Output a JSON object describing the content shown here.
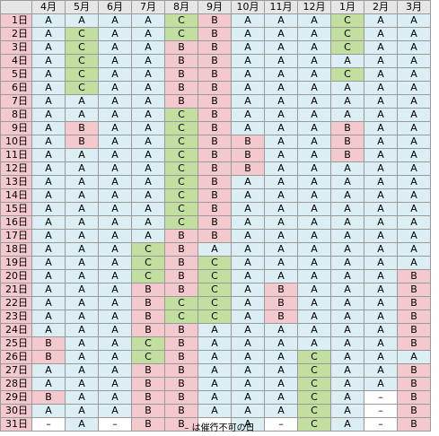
{
  "months": [
    "4月",
    "5月",
    "6月",
    "7月",
    "8月",
    "9月",
    "10月",
    "11月",
    "12月",
    "1月",
    "2月",
    "3月"
  ],
  "days": [
    "1日",
    "2日",
    "3日",
    "4日",
    "5日",
    "6日",
    "7日",
    "8日",
    "9日",
    "10日",
    "11日",
    "12日",
    "13日",
    "14日",
    "15日",
    "16日",
    "17日",
    "18日",
    "19日",
    "20日",
    "21日",
    "22日",
    "23日",
    "24日",
    "25日",
    "26日",
    "27日",
    "28日",
    "29日",
    "30日",
    "31日"
  ],
  "grid": [
    [
      "A",
      "A",
      "A",
      "A",
      "C",
      "B",
      "A",
      "A",
      "A",
      "C",
      "A",
      "A"
    ],
    [
      "A",
      "C",
      "A",
      "A",
      "C",
      "B",
      "A",
      "A",
      "A",
      "C",
      "A",
      "A"
    ],
    [
      "A",
      "C",
      "A",
      "A",
      "B",
      "B",
      "A",
      "A",
      "A",
      "C",
      "A",
      "A"
    ],
    [
      "A",
      "C",
      "A",
      "A",
      "B",
      "B",
      "A",
      "A",
      "A",
      "A",
      "A",
      "A"
    ],
    [
      "A",
      "C",
      "A",
      "A",
      "B",
      "B",
      "A",
      "A",
      "A",
      "C",
      "A",
      "A"
    ],
    [
      "A",
      "C",
      "A",
      "A",
      "B",
      "B",
      "A",
      "A",
      "A",
      "A",
      "A",
      "A"
    ],
    [
      "A",
      "A",
      "A",
      "A",
      "B",
      "B",
      "A",
      "A",
      "A",
      "A",
      "A",
      "A"
    ],
    [
      "A",
      "A",
      "A",
      "A",
      "C",
      "B",
      "A",
      "A",
      "A",
      "A",
      "A",
      "A"
    ],
    [
      "A",
      "B",
      "A",
      "A",
      "C",
      "B",
      "A",
      "A",
      "A",
      "B",
      "A",
      "A"
    ],
    [
      "A",
      "B",
      "A",
      "A",
      "C",
      "B",
      "B",
      "A",
      "A",
      "B",
      "A",
      "A"
    ],
    [
      "A",
      "A",
      "A",
      "A",
      "C",
      "B",
      "B",
      "A",
      "A",
      "B",
      "A",
      "A"
    ],
    [
      "A",
      "A",
      "A",
      "A",
      "C",
      "B",
      "B",
      "A",
      "A",
      "A",
      "A",
      "A"
    ],
    [
      "A",
      "A",
      "A",
      "A",
      "C",
      "B",
      "A",
      "A",
      "A",
      "A",
      "A",
      "A"
    ],
    [
      "A",
      "A",
      "A",
      "A",
      "C",
      "B",
      "A",
      "A",
      "A",
      "A",
      "A",
      "A"
    ],
    [
      "A",
      "A",
      "A",
      "A",
      "C",
      "B",
      "A",
      "A",
      "A",
      "A",
      "A",
      "A"
    ],
    [
      "A",
      "A",
      "A",
      "A",
      "C",
      "B",
      "A",
      "A",
      "A",
      "A",
      "A",
      "A"
    ],
    [
      "A",
      "A",
      "A",
      "A",
      "B",
      "B",
      "A",
      "A",
      "A",
      "A",
      "A",
      "A"
    ],
    [
      "A",
      "A",
      "A",
      "C",
      "B",
      "A",
      "A",
      "A",
      "A",
      "A",
      "A",
      "A"
    ],
    [
      "A",
      "A",
      "A",
      "C",
      "B",
      "C",
      "A",
      "A",
      "A",
      "A",
      "A",
      "A"
    ],
    [
      "A",
      "A",
      "A",
      "C",
      "B",
      "C",
      "A",
      "A",
      "A",
      "A",
      "A",
      "B"
    ],
    [
      "A",
      "A",
      "A",
      "B",
      "B",
      "C",
      "A",
      "B",
      "A",
      "A",
      "A",
      "B"
    ],
    [
      "A",
      "A",
      "A",
      "B",
      "C",
      "C",
      "A",
      "B",
      "A",
      "A",
      "A",
      "B"
    ],
    [
      "A",
      "A",
      "A",
      "B",
      "C",
      "C",
      "A",
      "B",
      "A",
      "A",
      "A",
      "B"
    ],
    [
      "A",
      "A",
      "A",
      "B",
      "B",
      "A",
      "A",
      "A",
      "A",
      "A",
      "A",
      "B"
    ],
    [
      "B",
      "A",
      "A",
      "C",
      "B",
      "A",
      "A",
      "A",
      "A",
      "A",
      "A",
      "B"
    ],
    [
      "B",
      "A",
      "A",
      "C",
      "B",
      "A",
      "A",
      "A",
      "C",
      "A",
      "A",
      "A"
    ],
    [
      "A",
      "A",
      "A",
      "B",
      "B",
      "A",
      "A",
      "A",
      "C",
      "A",
      "A",
      "B"
    ],
    [
      "A",
      "A",
      "A",
      "B",
      "B",
      "A",
      "A",
      "A",
      "C",
      "A",
      "A",
      "B"
    ],
    [
      "B",
      "A",
      "A",
      "B",
      "B",
      "A",
      "A",
      "A",
      "C",
      "A",
      "–",
      "B"
    ],
    [
      "A",
      "A",
      "A",
      "B",
      "B",
      "A",
      "A",
      "A",
      "C",
      "A",
      "–",
      "B"
    ],
    [
      "–",
      "A",
      "–",
      "B",
      "B",
      "–",
      "A",
      "–",
      "C",
      "A",
      "–",
      "B"
    ]
  ],
  "colors": {
    "A": "#daeef3",
    "B": "#f4c9cd",
    "C": "#c3df9f",
    "–": "#ffffff"
  },
  "note": "– は催行不可の日"
}
